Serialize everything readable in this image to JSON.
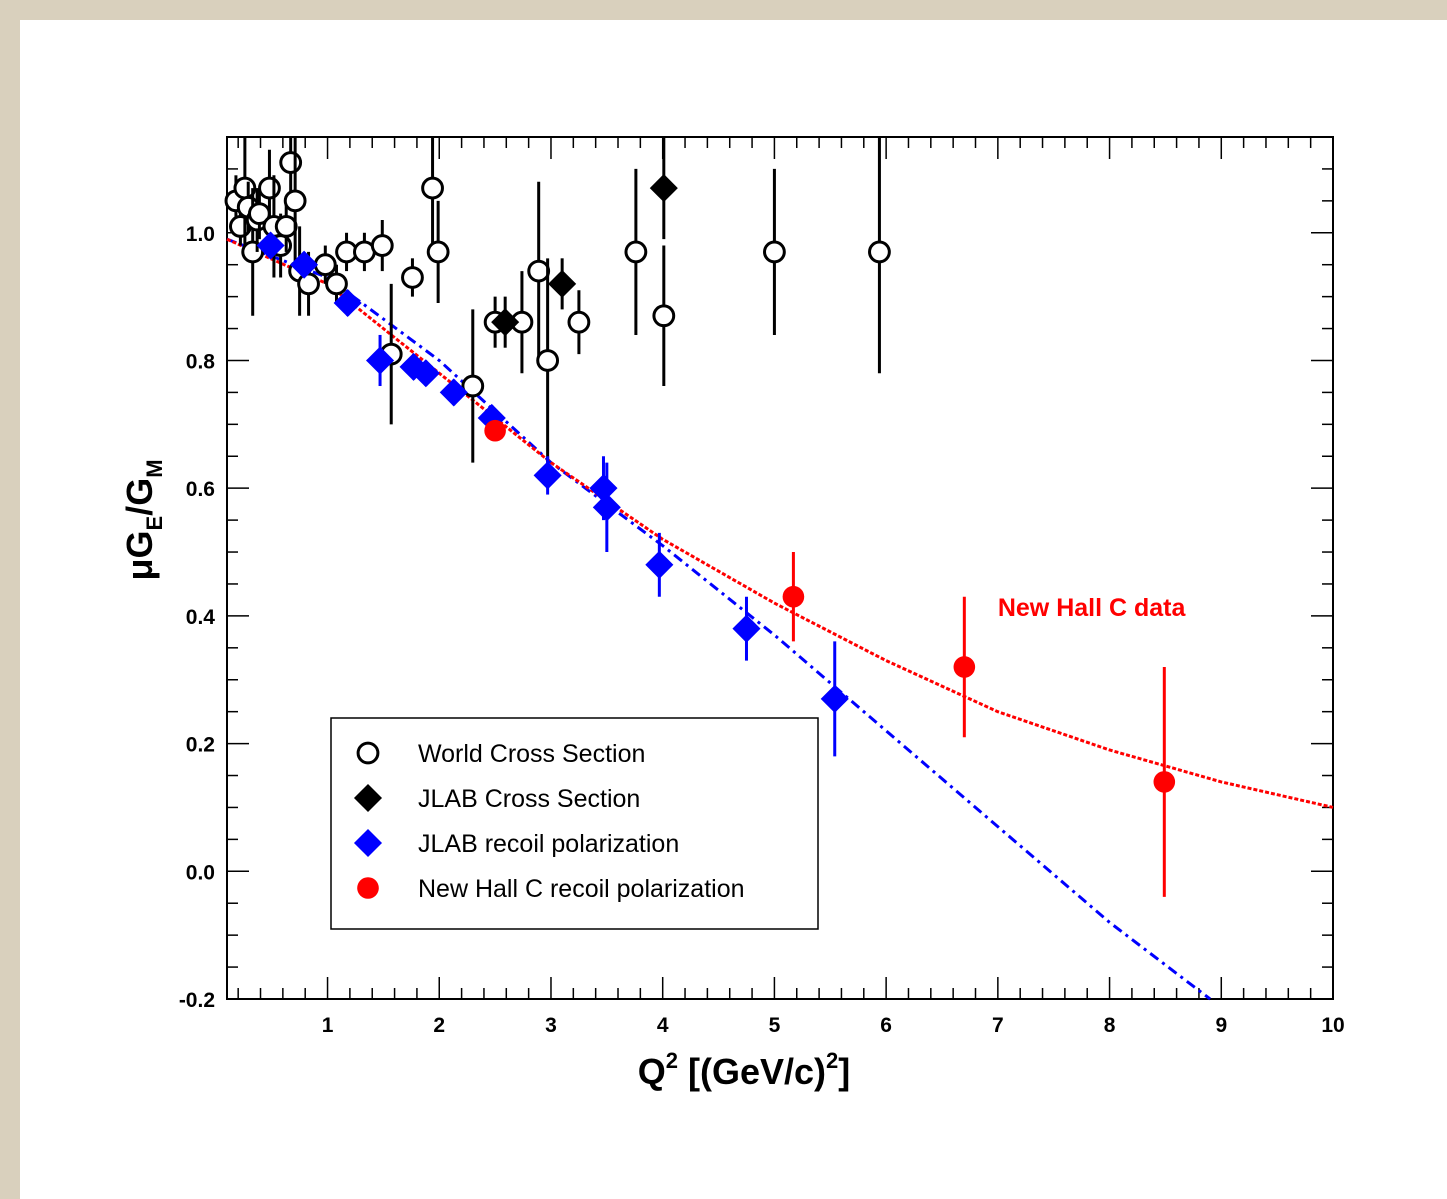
{
  "colors": {
    "page_border": "#d9d0bd",
    "world": "#000000",
    "jlab_cs": "#000000",
    "jlab_recoil": "#0000ff",
    "hallc": "#ff0000"
  },
  "chart_data": {
    "type": "scatter",
    "xlabel": {
      "main": "Q",
      "sup": "2",
      "rest": " [(GeV/c)",
      "sup2": "2",
      "end": "]"
    },
    "ylabel": {
      "mu": "μ",
      "g1": "G",
      "sub1": "E",
      "slash": "/G",
      "sub2": "M"
    },
    "xlim": [
      0.1,
      10
    ],
    "ylim": [
      -0.2,
      1.15
    ],
    "xticks": [
      1,
      2,
      3,
      4,
      5,
      6,
      7,
      8,
      9,
      10
    ],
    "yticks": [
      -0.2,
      0.0,
      0.2,
      0.4,
      0.6,
      0.8,
      1.0
    ],
    "ytick_labels": [
      "-0.2",
      "0.0",
      "0.2",
      "0.4",
      "0.6",
      "0.8",
      "1.0"
    ],
    "legend_position": "bottom-left",
    "annotation": {
      "text": "New Hall C data",
      "x": 7.0,
      "y": 0.4,
      "color": "#ff0000"
    },
    "series": [
      {
        "name": "World Cross Section",
        "marker": "open-circle",
        "color": "#000000",
        "points": [
          {
            "x": 0.18,
            "y": 1.05,
            "err": 0.04
          },
          {
            "x": 0.22,
            "y": 1.01,
            "err": 0.03
          },
          {
            "x": 0.26,
            "y": 1.07,
            "err": 0.1
          },
          {
            "x": 0.29,
            "y": 1.04,
            "err": 0.04
          },
          {
            "x": 0.33,
            "y": 0.97,
            "err": 0.1
          },
          {
            "x": 0.37,
            "y": 1.02,
            "err": 0.05
          },
          {
            "x": 0.39,
            "y": 1.03,
            "err": 0.04
          },
          {
            "x": 0.48,
            "y": 1.07,
            "err": 0.06
          },
          {
            "x": 0.52,
            "y": 1.01,
            "err": 0.08
          },
          {
            "x": 0.58,
            "y": 0.98,
            "err": 0.05
          },
          {
            "x": 0.63,
            "y": 1.01,
            "err": 0.04
          },
          {
            "x": 0.67,
            "y": 1.11,
            "err": 0.05
          },
          {
            "x": 0.71,
            "y": 1.05,
            "err": 0.1
          },
          {
            "x": 0.75,
            "y": 0.94,
            "err": 0.07
          },
          {
            "x": 0.83,
            "y": 0.92,
            "err": 0.05
          },
          {
            "x": 0.98,
            "y": 0.95,
            "err": 0.03
          },
          {
            "x": 1.08,
            "y": 0.92,
            "err": 0.03
          },
          {
            "x": 1.17,
            "y": 0.97,
            "err": 0.03
          },
          {
            "x": 1.33,
            "y": 0.97,
            "err": 0.03
          },
          {
            "x": 1.49,
            "y": 0.98,
            "err": 0.04
          },
          {
            "x": 1.57,
            "y": 0.81,
            "err": 0.11
          },
          {
            "x": 1.76,
            "y": 0.93,
            "err": 0.03
          },
          {
            "x": 1.94,
            "y": 1.07,
            "err": 0.09
          },
          {
            "x": 1.99,
            "y": 0.97,
            "err": 0.08
          },
          {
            "x": 2.3,
            "y": 0.76,
            "err": 0.12
          },
          {
            "x": 2.5,
            "y": 0.86,
            "err": 0.04
          },
          {
            "x": 2.74,
            "y": 0.86,
            "err": 0.08
          },
          {
            "x": 2.89,
            "y": 0.94,
            "err": 0.14
          },
          {
            "x": 2.97,
            "y": 0.8,
            "err": 0.16
          },
          {
            "x": 3.25,
            "y": 0.86,
            "err": 0.05
          },
          {
            "x": 3.76,
            "y": 0.97,
            "err": 0.13
          },
          {
            "x": 4.01,
            "y": 0.87,
            "err": 0.11
          },
          {
            "x": 5.0,
            "y": 0.97,
            "err": 0.13
          },
          {
            "x": 5.94,
            "y": 0.97,
            "err": 0.19
          }
        ]
      },
      {
        "name": "JLAB Cross Section",
        "marker": "filled-diamond",
        "color": "#000000",
        "points": [
          {
            "x": 2.59,
            "y": 0.86,
            "err": 0.04
          },
          {
            "x": 3.1,
            "y": 0.92,
            "err": 0.04
          },
          {
            "x": 4.01,
            "y": 1.07,
            "err": 0.08
          }
        ]
      },
      {
        "name": "JLAB recoil polarization",
        "marker": "filled-diamond",
        "color": "#0000ff",
        "points": [
          {
            "x": 0.49,
            "y": 0.98,
            "err": 0.02
          },
          {
            "x": 0.79,
            "y": 0.95,
            "err": 0.02
          },
          {
            "x": 1.18,
            "y": 0.89,
            "err": 0.02
          },
          {
            "x": 1.47,
            "y": 0.8,
            "err": 0.04
          },
          {
            "x": 1.77,
            "y": 0.79,
            "err": 0.02
          },
          {
            "x": 1.88,
            "y": 0.78,
            "err": 0.02
          },
          {
            "x": 2.13,
            "y": 0.75,
            "err": 0.02
          },
          {
            "x": 2.47,
            "y": 0.71,
            "err": 0.02
          },
          {
            "x": 2.97,
            "y": 0.62,
            "err": 0.03
          },
          {
            "x": 3.47,
            "y": 0.6,
            "err": 0.05
          },
          {
            "x": 3.5,
            "y": 0.57,
            "err": 0.07
          },
          {
            "x": 3.97,
            "y": 0.48,
            "err": 0.05
          },
          {
            "x": 4.75,
            "y": 0.38,
            "err": 0.05
          },
          {
            "x": 5.54,
            "y": 0.27,
            "err": 0.09
          }
        ]
      },
      {
        "name": "New Hall C recoil polarization",
        "marker": "filled-circle",
        "color": "#ff0000",
        "points": [
          {
            "x": 2.5,
            "y": 0.69,
            "err": 0.01
          },
          {
            "x": 5.17,
            "y": 0.43,
            "err": 0.07
          },
          {
            "x": 6.7,
            "y": 0.32,
            "err": 0.11
          },
          {
            "x": 8.49,
            "y": 0.14,
            "err": 0.18
          }
        ]
      }
    ],
    "fits": [
      {
        "style": "dash-dot",
        "color": "#0000ff",
        "x": [
          0.1,
          1,
          2,
          3,
          4,
          5,
          6,
          7,
          8,
          8.9
        ],
        "y": [
          0.99,
          0.93,
          0.8,
          0.64,
          0.51,
          0.37,
          0.22,
          0.07,
          -0.08,
          -0.2
        ]
      },
      {
        "style": "dotted",
        "color": "#ff0000",
        "x": [
          0.1,
          1,
          2,
          3,
          4,
          5,
          6,
          7,
          8,
          9,
          10
        ],
        "y": [
          0.99,
          0.92,
          0.78,
          0.64,
          0.52,
          0.42,
          0.33,
          0.25,
          0.19,
          0.14,
          0.1
        ]
      }
    ]
  }
}
